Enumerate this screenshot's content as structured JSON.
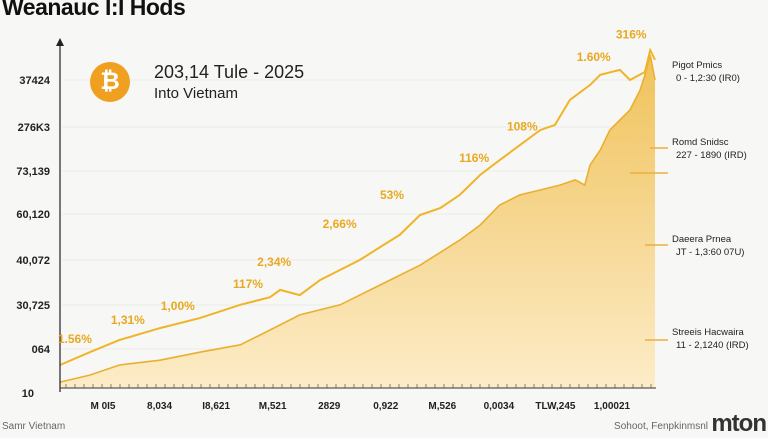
{
  "title": "Weanauc I:I Hods",
  "header": {
    "coin_icon": "bitcoin-icon",
    "line1": "203,14 Tule - 2025",
    "line2": "Into Vietnam"
  },
  "colors": {
    "line": "#f0b429",
    "area_top": "#f0c25a",
    "area_bottom": "#fcecc8",
    "coin": "#f0a020"
  },
  "chart_data": {
    "type": "area",
    "title": "Weanauc I:I Hods",
    "xlim": [
      0,
      100
    ],
    "ylim": [
      0,
      100
    ],
    "y_tick_labels": [
      "10",
      "064",
      "30,725",
      "40,072",
      "60,120",
      "73,139",
      "276K3",
      "37424"
    ],
    "x_tick_labels": [
      "M 0I5",
      "8,034",
      "I8,621",
      "M,521",
      "2829",
      "0,922",
      "M,526",
      "0,0034",
      "TLW,245",
      "1,00021"
    ],
    "grid": true,
    "series": [
      {
        "name": "upper-line",
        "points": [
          [
            0,
            6.6
          ],
          [
            5,
            10.3
          ],
          [
            10,
            13.8
          ],
          [
            16.8,
            17.2
          ],
          [
            23.5,
            20.1
          ],
          [
            30.3,
            23.9
          ],
          [
            35.3,
            26.1
          ],
          [
            37,
            28.2
          ],
          [
            40.3,
            26.7
          ],
          [
            43.7,
            31.0
          ],
          [
            50.4,
            36.8
          ],
          [
            53.8,
            40.5
          ],
          [
            57.1,
            44.0
          ],
          [
            60.5,
            49.7
          ],
          [
            63.9,
            51.7
          ],
          [
            67.2,
            55.5
          ],
          [
            70.6,
            61.2
          ],
          [
            73.9,
            65.5
          ],
          [
            77.3,
            69.8
          ],
          [
            80.7,
            74.1
          ],
          [
            83.2,
            75.6
          ],
          [
            85.7,
            82.8
          ],
          [
            89.1,
            87.1
          ],
          [
            90.8,
            90.0
          ],
          [
            94.1,
            91.4
          ],
          [
            95.8,
            88.5
          ],
          [
            98.3,
            90.8
          ],
          [
            99.2,
            97.1
          ],
          [
            100,
            94.3
          ]
        ]
      },
      {
        "name": "area",
        "points": [
          [
            0,
            1.7
          ],
          [
            5,
            3.7
          ],
          [
            10,
            6.6
          ],
          [
            16.8,
            8.0
          ],
          [
            23.5,
            10.3
          ],
          [
            30.3,
            12.4
          ],
          [
            33.6,
            15.2
          ],
          [
            40.3,
            21.0
          ],
          [
            47.1,
            23.9
          ],
          [
            53.8,
            29.6
          ],
          [
            60.5,
            35.3
          ],
          [
            67.2,
            42.5
          ],
          [
            70.6,
            46.8
          ],
          [
            73.9,
            52.6
          ],
          [
            77.3,
            55.5
          ],
          [
            80.7,
            56.9
          ],
          [
            84.0,
            58.3
          ],
          [
            86.6,
            59.8
          ],
          [
            88.2,
            58.3
          ],
          [
            89.1,
            64.1
          ],
          [
            90.8,
            68.4
          ],
          [
            92.4,
            74.1
          ],
          [
            94.1,
            77.0
          ],
          [
            95.8,
            79.9
          ],
          [
            97.5,
            85.6
          ],
          [
            98.3,
            89.9
          ],
          [
            99.2,
            95.7
          ],
          [
            100,
            88.5
          ]
        ]
      }
    ],
    "annotations": [
      {
        "text": "1.56%",
        "x": 2.5,
        "y": 13
      },
      {
        "text": "1,31%",
        "x": 11.4,
        "y": 18.4
      },
      {
        "text": "1,00%",
        "x": 19.8,
        "y": 22.4
      },
      {
        "text": "117%",
        "x": 31.6,
        "y": 28.7
      },
      {
        "text": "2,34%",
        "x": 36,
        "y": 35
      },
      {
        "text": "2,66%",
        "x": 47,
        "y": 46
      },
      {
        "text": "53%",
        "x": 55.8,
        "y": 54.3
      },
      {
        "text": "116%",
        "x": 69.6,
        "y": 65
      },
      {
        "text": "108%",
        "x": 77.7,
        "y": 74
      },
      {
        "text": "1.60%",
        "x": 89.7,
        "y": 94
      },
      {
        "text": "316%",
        "x": 96,
        "y": 100.5
      }
    ]
  },
  "callouts": [
    {
      "label": "Pigot Pmics",
      "value": "0 - 1,2:30 (IR0)"
    },
    {
      "label": "Romd Snidsc",
      "value": "227 - 1890 (IRD)"
    },
    {
      "label": "Daeera Prnea",
      "value": "JT - 1,3:60 07U)"
    },
    {
      "label": "Streeis Hacwaira",
      "value": "11 - 2,1240 (IRD)"
    }
  ],
  "footer": {
    "left": "Samr Vietnam",
    "right": "Sohoot, Fenpkinmsnl",
    "logo": "mton"
  }
}
